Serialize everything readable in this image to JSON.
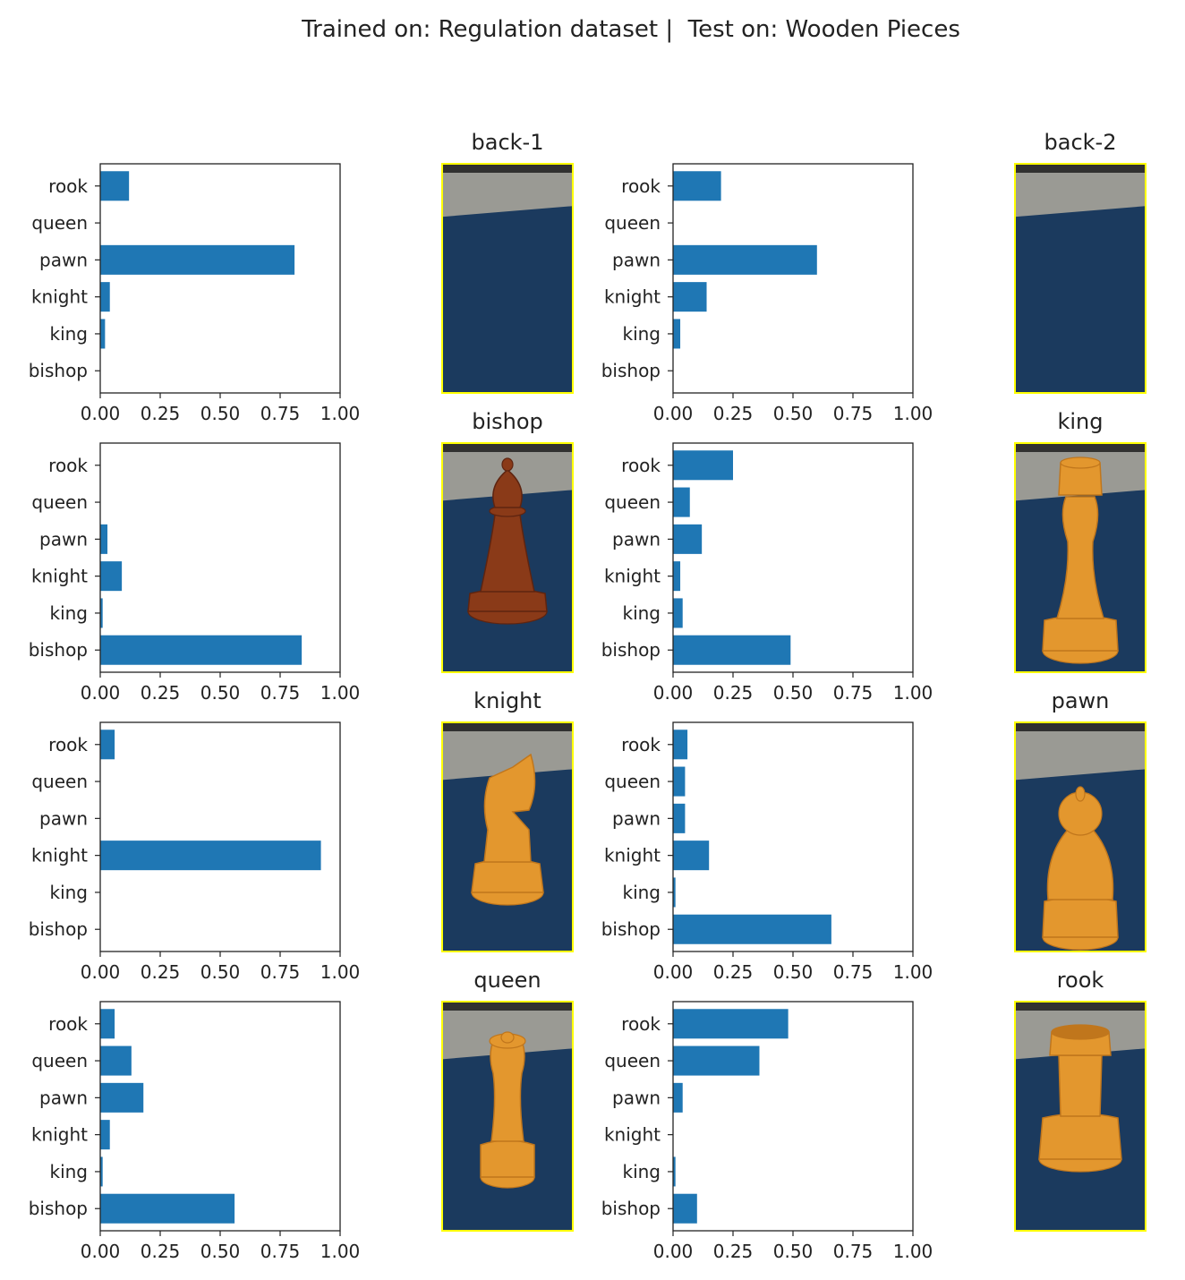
{
  "figure_title": "Trained on: Regulation dataset |  Test on: Wooden Pieces",
  "colors": {
    "bar": "#1f77b4",
    "image_border": "#ffff00",
    "table_surface": "#1b3a5e",
    "background_wall": "#9a9a94",
    "wood_dark": "#8a3a18",
    "wood_light": "#e3972e"
  },
  "chart_data": [
    {
      "type": "bar",
      "orientation": "horizontal",
      "categories": [
        "bishop",
        "king",
        "knight",
        "pawn",
        "queen",
        "rook"
      ],
      "values": [
        0.0,
        0.02,
        0.04,
        0.81,
        0.0,
        0.12
      ],
      "xlim": [
        0,
        1
      ],
      "xticks": [
        "0.00",
        "0.25",
        "0.50",
        "0.75",
        "1.00"
      ],
      "image_title": "back-1",
      "image_icon": "empty-board-photo"
    },
    {
      "type": "bar",
      "orientation": "horizontal",
      "categories": [
        "bishop",
        "king",
        "knight",
        "pawn",
        "queen",
        "rook"
      ],
      "values": [
        0.0,
        0.03,
        0.14,
        0.6,
        0.0,
        0.2
      ],
      "xlim": [
        0,
        1
      ],
      "xticks": [
        "0.00",
        "0.25",
        "0.50",
        "0.75",
        "1.00"
      ],
      "image_title": "back-2",
      "image_icon": "empty-board-photo"
    },
    {
      "type": "bar",
      "orientation": "horizontal",
      "categories": [
        "bishop",
        "king",
        "knight",
        "pawn",
        "queen",
        "rook"
      ],
      "values": [
        0.84,
        0.01,
        0.09,
        0.03,
        0.0,
        0.0
      ],
      "xlim": [
        0,
        1
      ],
      "xticks": [
        "0.00",
        "0.25",
        "0.50",
        "0.75",
        "1.00"
      ],
      "image_title": "bishop",
      "image_icon": "bishop-photo"
    },
    {
      "type": "bar",
      "orientation": "horizontal",
      "categories": [
        "bishop",
        "king",
        "knight",
        "pawn",
        "queen",
        "rook"
      ],
      "values": [
        0.49,
        0.04,
        0.03,
        0.12,
        0.07,
        0.25
      ],
      "xlim": [
        0,
        1
      ],
      "xticks": [
        "0.00",
        "0.25",
        "0.50",
        "0.75",
        "1.00"
      ],
      "image_title": "king",
      "image_icon": "king-photo"
    },
    {
      "type": "bar",
      "orientation": "horizontal",
      "categories": [
        "bishop",
        "king",
        "knight",
        "pawn",
        "queen",
        "rook"
      ],
      "values": [
        0.0,
        0.0,
        0.92,
        0.0,
        0.0,
        0.06
      ],
      "xlim": [
        0,
        1
      ],
      "xticks": [
        "0.00",
        "0.25",
        "0.50",
        "0.75",
        "1.00"
      ],
      "image_title": "knight",
      "image_icon": "knight-photo"
    },
    {
      "type": "bar",
      "orientation": "horizontal",
      "categories": [
        "bishop",
        "king",
        "knight",
        "pawn",
        "queen",
        "rook"
      ],
      "values": [
        0.66,
        0.01,
        0.15,
        0.05,
        0.05,
        0.06
      ],
      "xlim": [
        0,
        1
      ],
      "xticks": [
        "0.00",
        "0.25",
        "0.50",
        "0.75",
        "1.00"
      ],
      "image_title": "pawn",
      "image_icon": "pawn-photo"
    },
    {
      "type": "bar",
      "orientation": "horizontal",
      "categories": [
        "bishop",
        "king",
        "knight",
        "pawn",
        "queen",
        "rook"
      ],
      "values": [
        0.56,
        0.01,
        0.04,
        0.18,
        0.13,
        0.06
      ],
      "xlim": [
        0,
        1
      ],
      "xticks": [
        "0.00",
        "0.25",
        "0.50",
        "0.75",
        "1.00"
      ],
      "image_title": "queen",
      "image_icon": "queen-photo"
    },
    {
      "type": "bar",
      "orientation": "horizontal",
      "categories": [
        "bishop",
        "king",
        "knight",
        "pawn",
        "queen",
        "rook"
      ],
      "values": [
        0.1,
        0.01,
        0.0,
        0.04,
        0.36,
        0.48
      ],
      "xlim": [
        0,
        1
      ],
      "xticks": [
        "0.00",
        "0.25",
        "0.50",
        "0.75",
        "1.00"
      ],
      "image_title": "rook",
      "image_icon": "rook-photo"
    }
  ]
}
